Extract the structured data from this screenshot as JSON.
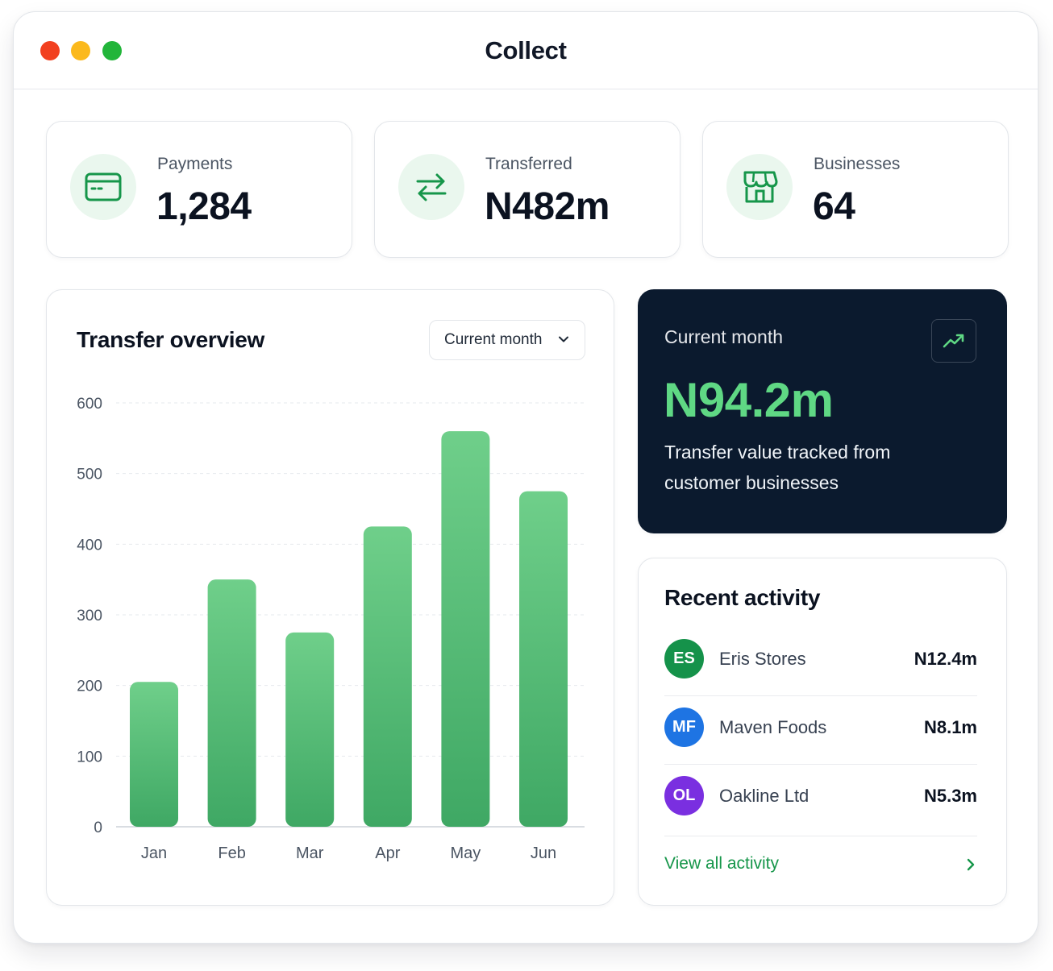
{
  "window": {
    "title": "Collect"
  },
  "stats": [
    {
      "label": "Payments",
      "value": "1,284",
      "icon": "card-icon"
    },
    {
      "label": "Transferred",
      "value": "N482m",
      "icon": "transfer-arrows-icon"
    },
    {
      "label": "Businesses",
      "value": "64",
      "icon": "store-icon"
    }
  ],
  "overview": {
    "title": "Transfer overview",
    "period_select": "Current month"
  },
  "chart_data": {
    "type": "bar",
    "categories": [
      "Jan",
      "Feb",
      "Mar",
      "Apr",
      "May",
      "Jun"
    ],
    "values": [
      205,
      350,
      275,
      425,
      560,
      475
    ],
    "ylim": [
      0,
      600
    ],
    "yticks": [
      0,
      100,
      200,
      300,
      400,
      500,
      600
    ],
    "grid": true,
    "bar_color": "#4cbf6e"
  },
  "highlight": {
    "label": "Current month",
    "value": "N94.2m",
    "description": "Transfer value tracked from customer businesses",
    "icon": "trend-up-icon"
  },
  "activity": {
    "title": "Recent activity",
    "items": [
      {
        "initials": "ES",
        "name": "Eris Stores",
        "amount": "N12.4m",
        "color": "#15924a"
      },
      {
        "initials": "MF",
        "name": "Maven Foods",
        "amount": "N8.1m",
        "color": "#1e74e3"
      },
      {
        "initials": "OL",
        "name": "Oakline Ltd",
        "amount": "N5.3m",
        "color": "#7a2fe0"
      }
    ],
    "view_all": "View all activity"
  },
  "colors": {
    "accent": "#16964a",
    "dark_card": "#0b1a2e",
    "highlight_value": "#5fd884"
  }
}
